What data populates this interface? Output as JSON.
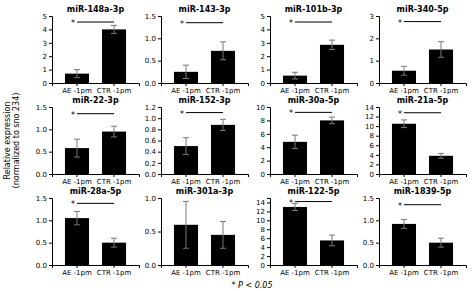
{
  "chart_data": [
    {
      "type": "bar",
      "title": "miR-148a-3p",
      "categories": [
        "AE -1pm",
        "CTR -1pm"
      ],
      "values": [
        0.7,
        4.0
      ],
      "errors": [
        0.3,
        0.3
      ],
      "color": "#000000",
      "ylim": [
        0,
        5
      ],
      "yticks": [
        0,
        1,
        2,
        3,
        4,
        5
      ],
      "annotations": [
        {
          "text": "*",
          "y": 4.55
        }
      ]
    },
    {
      "type": "bar",
      "title": "miR-143-3p",
      "categories": [
        "AE -1pm",
        "CTR -1pm"
      ],
      "values": [
        0.25,
        0.72
      ],
      "errors": [
        0.15,
        0.2
      ],
      "color": "#000000",
      "ylim": [
        0,
        1.5
      ],
      "yticks": [
        {
          "value": 0,
          "label": "0.0"
        },
        0.5,
        {
          "value": 1.0,
          "label": "1.0"
        },
        1.5
      ],
      "annotations": [
        {
          "text": "*",
          "y": 1.35
        }
      ]
    },
    {
      "type": "bar",
      "title": "miR-101b-3p",
      "categories": [
        "AE -1pm",
        "CTR -1pm"
      ],
      "values": [
        0.55,
        2.85
      ],
      "errors": [
        0.25,
        0.35
      ],
      "color": "#000000",
      "ylim": [
        0,
        5
      ],
      "yticks": [
        0,
        1,
        2,
        3,
        4,
        5
      ],
      "annotations": [
        {
          "text": "*",
          "y": 4.55
        }
      ]
    },
    {
      "type": "bar",
      "title": "miR-340-5p",
      "categories": [
        "AE -1pm",
        "CTR -1pm"
      ],
      "values": [
        0.55,
        1.5
      ],
      "errors": [
        0.2,
        0.35
      ],
      "color": "#000000",
      "ylim": [
        0,
        3
      ],
      "yticks": [
        0,
        1,
        2,
        3
      ],
      "annotations": [
        {
          "text": "*",
          "y": 2.75
        }
      ]
    },
    {
      "type": "bar",
      "title": "miR-22-3p",
      "categories": [
        "AE -1pm",
        "CTR -1pm"
      ],
      "values": [
        0.58,
        0.95
      ],
      "errors": [
        0.2,
        0.12
      ],
      "color": "#000000",
      "ylim": [
        0,
        1.5
      ],
      "yticks": [
        {
          "value": 0,
          "label": "0.0"
        },
        0.5,
        {
          "value": 1.0,
          "label": "1.0"
        },
        1.5
      ],
      "annotations": [
        {
          "text": "*",
          "y": 1.35
        }
      ]
    },
    {
      "type": "bar",
      "title": "miR-152-3p",
      "categories": [
        "AE -1pm",
        "CTR -1pm"
      ],
      "values": [
        0.5,
        0.88
      ],
      "errors": [
        0.15,
        0.1
      ],
      "color": "#000000",
      "ylim": [
        0,
        1.2
      ],
      "yticks": [
        {
          "value": 0,
          "label": "0.0"
        },
        0.2,
        0.4,
        0.6,
        0.8,
        {
          "value": 1.0,
          "label": "1.0"
        },
        1.2
      ],
      "annotations": [
        {
          "text": "*",
          "y": 1.1
        }
      ]
    },
    {
      "type": "bar",
      "title": "miR-30a-5p",
      "categories": [
        "AE -1pm",
        "CTR -1pm"
      ],
      "values": [
        4.8,
        8.0
      ],
      "errors": [
        1.0,
        0.5
      ],
      "color": "#000000",
      "ylim": [
        0,
        10
      ],
      "yticks": [
        0,
        2,
        4,
        6,
        8,
        10
      ],
      "annotations": [
        {
          "text": "*",
          "y": 9.2
        }
      ]
    },
    {
      "type": "bar",
      "title": "miR-21a-5p",
      "categories": [
        "AE -1pm",
        "CTR -1pm"
      ],
      "values": [
        10.5,
        3.8
      ],
      "errors": [
        0.8,
        0.5
      ],
      "color": "#000000",
      "ylim": [
        0,
        14
      ],
      "yticks": [
        0,
        2,
        4,
        6,
        8,
        10,
        12,
        14
      ],
      "annotations": [
        {
          "text": "*",
          "y": 12.8
        }
      ]
    },
    {
      "type": "bar",
      "title": "miR-28a-5p",
      "categories": [
        "AE -1pm",
        "CTR -1pm"
      ],
      "values": [
        1.05,
        0.5
      ],
      "errors": [
        0.15,
        0.1
      ],
      "color": "#000000",
      "ylim": [
        0,
        1.5
      ],
      "yticks": [
        {
          "value": 0,
          "label": "0.0"
        },
        0.5,
        {
          "value": 1.0,
          "label": "1.0"
        },
        1.5
      ],
      "annotations": [
        {
          "text": "*",
          "y": 1.38
        }
      ]
    },
    {
      "type": "bar",
      "title": "miR-301a-3p",
      "categories": [
        "AE -1pm",
        "CTR -1pm"
      ],
      "values": [
        0.6,
        0.45
      ],
      "errors": [
        0.35,
        0.2
      ],
      "color": "#000000",
      "ylim": [
        0,
        1.0
      ],
      "yticks": [
        {
          "value": 0,
          "label": "0.0"
        },
        0.5,
        {
          "value": 1.0,
          "label": "1.0"
        }
      ]
    },
    {
      "type": "bar",
      "title": "miR-122-5p",
      "categories": [
        "AE -1pm",
        "CTR -1pm"
      ],
      "values": [
        13.0,
        5.5
      ],
      "errors": [
        0.8,
        1.2
      ],
      "color": "#000000",
      "ylim": [
        0,
        15
      ],
      "yticks": [
        0,
        2,
        4,
        6,
        8,
        10,
        12,
        14
      ],
      "annotations": [
        {
          "text": "*",
          "y": 14.2
        }
      ]
    },
    {
      "type": "bar",
      "title": "miR-1839-5p",
      "categories": [
        "AE -1pm",
        "CTR -1pm"
      ],
      "values": [
        0.92,
        0.5
      ],
      "errors": [
        0.1,
        0.1
      ],
      "color": "#000000",
      "ylim": [
        0,
        1.5
      ],
      "yticks": [
        {
          "value": 0,
          "label": "0.0"
        },
        0.5,
        {
          "value": 1.0,
          "label": "1.0"
        },
        1.5
      ],
      "annotations": [
        {
          "text": "*",
          "y": 1.35
        }
      ]
    }
  ],
  "ylabel": "Relative expression\n(normalized to sno 234)",
  "footnote": "* P < 0.05"
}
